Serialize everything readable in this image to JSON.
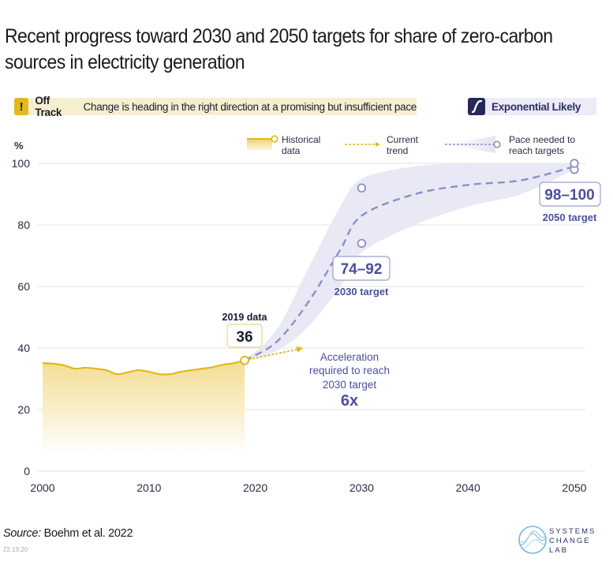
{
  "title": "Recent progress toward 2030 and 2050 targets for share of zero-carbon sources in electricity generation",
  "status": {
    "icon": "exclamation-icon",
    "label": "Off Track",
    "description": "Change is heading in the right direction at a promising but insufficient pace",
    "color": "#e2b81e",
    "background": "#f6efcf"
  },
  "trajectory": {
    "icon": "s-curve-icon",
    "label": "Exponential Likely",
    "color": "#25285a",
    "background": "#ecebf6"
  },
  "legend": {
    "historical": "Historical data",
    "historical_lines": [
      "Historical",
      "data"
    ],
    "trend": "Current trend",
    "trend_lines": [
      "Current",
      "trend"
    ],
    "pace": "Pace needed to reach targets",
    "pace_lines": [
      "Pace needed to",
      "reach targets"
    ]
  },
  "annotations": {
    "data2019_label": "2019 data",
    "data2019_value": "36",
    "target2030_value": "74–92",
    "target2030_label": "2030 target",
    "target2050_value": "98–100",
    "target2050_label": "2050 target",
    "acceleration_lines": [
      "Acceleration",
      "required to reach",
      "2030 target"
    ],
    "acceleration_value": "6x"
  },
  "colors": {
    "historical": "#e2b81e",
    "historical_fill": "#f5e4a6",
    "pace": "#8d8fc6",
    "pace_band": "#e9e9f5",
    "target_text": "#4a4f9c",
    "axis_text": "#2b2b45",
    "grid": "#e3e3e3"
  },
  "chart_data": {
    "type": "line",
    "title": "Recent progress toward 2030 and 2050 targets for share of zero-carbon sources in electricity generation",
    "xlabel": "",
    "ylabel": "%",
    "xlim": [
      2000,
      2050
    ],
    "ylim": [
      0,
      100
    ],
    "x_ticks": [
      2000,
      2010,
      2020,
      2030,
      2040,
      2050
    ],
    "y_ticks": [
      0,
      20,
      40,
      60,
      80,
      100
    ],
    "grid": true,
    "legend_position": "top-right",
    "series": [
      {
        "name": "Historical data",
        "style": "area",
        "x": [
          2000,
          2001,
          2002,
          2003,
          2004,
          2005,
          2006,
          2007,
          2008,
          2009,
          2010,
          2011,
          2012,
          2013,
          2014,
          2015,
          2016,
          2017,
          2018,
          2019
        ],
        "values": [
          35.1,
          34.9,
          34.4,
          33.3,
          33.6,
          33.3,
          32.8,
          31.5,
          32.1,
          32.8,
          32.3,
          31.5,
          31.5,
          32.3,
          32.8,
          33.3,
          33.8,
          34.6,
          35.1,
          36
        ]
      },
      {
        "name": "Current trend",
        "style": "dotted-arrow",
        "x": [
          2019,
          2024.5
        ],
        "values": [
          36,
          40
        ]
      },
      {
        "name": "Pace needed to reach targets",
        "style": "dashed",
        "x": [
          2019,
          2022,
          2025,
          2028,
          2030,
          2035,
          2040,
          2045,
          2050
        ],
        "values": [
          36,
          42,
          55,
          72,
          83,
          90,
          93,
          94.5,
          99
        ]
      },
      {
        "name": "Pace band upper",
        "style": "band",
        "x": [
          2019,
          2022,
          2025,
          2028,
          2030,
          2035,
          2040,
          2045,
          2050
        ],
        "values": [
          36,
          46,
          66,
          86,
          95,
          99,
          100,
          100,
          100
        ]
      },
      {
        "name": "Pace band lower",
        "style": "band",
        "x": [
          2019,
          2022,
          2025,
          2028,
          2030,
          2035,
          2040,
          2045,
          2050
        ],
        "values": [
          36,
          39,
          47,
          60,
          71,
          80,
          86,
          90,
          98
        ]
      }
    ],
    "targets": [
      {
        "year": 2030,
        "low": 74,
        "high": 92,
        "label": "2030 target",
        "range": "74–92"
      },
      {
        "year": 2050,
        "low": 98,
        "high": 100,
        "label": "2050 target",
        "range": "98–100"
      }
    ],
    "highlight": {
      "year": 2019,
      "value": 36,
      "label": "2019 data"
    },
    "acceleration_required": "6x"
  },
  "footer": {
    "source_prefix": "Source:",
    "source_text": "Boehm et al. 2022",
    "date": "22.10.20",
    "logo_lines": [
      "SYSTEMS",
      "CHANGE",
      "LAB"
    ]
  }
}
